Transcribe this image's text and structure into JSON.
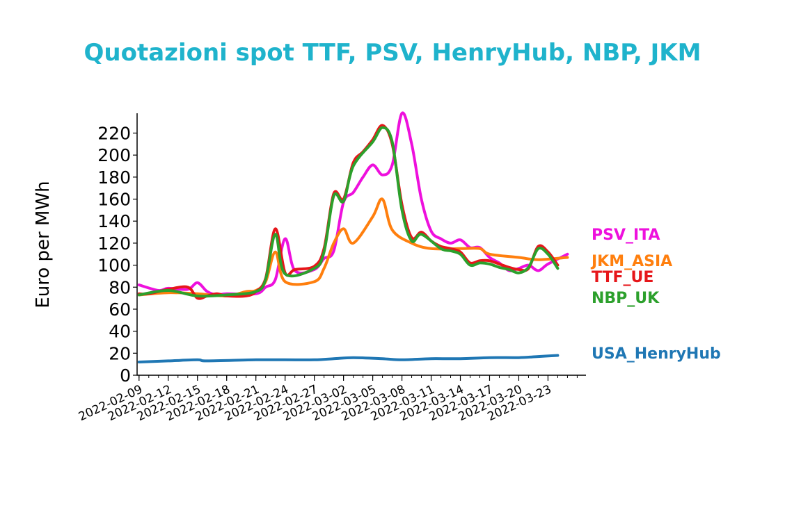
{
  "chart_data": {
    "type": "line",
    "title": "Quotazioni spot TTF, PSV, HenryHub, NBP, JKM",
    "xlabel": "",
    "ylabel": "Euro per MWh",
    "ylim": [
      0,
      238
    ],
    "yticks": [
      0,
      20,
      40,
      60,
      80,
      100,
      120,
      140,
      160,
      180,
      200,
      220
    ],
    "xlim": [
      "2022-02-09",
      "2022-03-26"
    ],
    "xticks": [
      "2022-02-09",
      "2022-02-12",
      "2022-02-15",
      "2022-02-18",
      "2022-02-21",
      "2022-02-24",
      "2022-02-27",
      "2022-03-02",
      "2022-03-05",
      "2022-03-08",
      "2022-03-11",
      "2022-03-14",
      "2022-03-17",
      "2022-03-20",
      "2022-03-23"
    ],
    "legend_placement": "right, labels at line ends",
    "grid": false,
    "series": [
      {
        "name": "PSV_ITA",
        "color": "#ee10dd",
        "points": [
          [
            "2022-02-09",
            82
          ],
          [
            "2022-02-11",
            77
          ],
          [
            "2022-02-12",
            79
          ],
          [
            "2022-02-14",
            78
          ],
          [
            "2022-02-15",
            84
          ],
          [
            "2022-02-16",
            76
          ],
          [
            "2022-02-17",
            73
          ],
          [
            "2022-02-18",
            74
          ],
          [
            "2022-02-21",
            74
          ],
          [
            "2022-02-22",
            80
          ],
          [
            "2022-02-23",
            87
          ],
          [
            "2022-02-24",
            124
          ],
          [
            "2022-02-25",
            95
          ],
          [
            "2022-02-27",
            96
          ],
          [
            "2022-02-28",
            106
          ],
          [
            "2022-03-01",
            113
          ],
          [
            "2022-03-02",
            157
          ],
          [
            "2022-03-03",
            166
          ],
          [
            "2022-03-04",
            180
          ],
          [
            "2022-03-05",
            191
          ],
          [
            "2022-03-06",
            182
          ],
          [
            "2022-03-07",
            191
          ],
          [
            "2022-03-08",
            238
          ],
          [
            "2022-03-09",
            210
          ],
          [
            "2022-03-10",
            160
          ],
          [
            "2022-03-11",
            131
          ],
          [
            "2022-03-12",
            124
          ],
          [
            "2022-03-13",
            120
          ],
          [
            "2022-03-14",
            123
          ],
          [
            "2022-03-15",
            116
          ],
          [
            "2022-03-16",
            116
          ],
          [
            "2022-03-17",
            107
          ],
          [
            "2022-03-18",
            102
          ],
          [
            "2022-03-19",
            95
          ],
          [
            "2022-03-20",
            97
          ],
          [
            "2022-03-21",
            100
          ],
          [
            "2022-03-22",
            95
          ],
          [
            "2022-03-23",
            101
          ],
          [
            "2022-03-25",
            110
          ]
        ]
      },
      {
        "name": "JKM_ASIA",
        "color": "#ff7f0e",
        "points": [
          [
            "2022-02-09",
            73
          ],
          [
            "2022-02-12",
            75
          ],
          [
            "2022-02-15",
            74
          ],
          [
            "2022-02-18",
            72
          ],
          [
            "2022-02-20",
            76
          ],
          [
            "2022-02-21",
            77
          ],
          [
            "2022-02-22",
            85
          ],
          [
            "2022-02-23",
            112
          ],
          [
            "2022-02-24",
            85
          ],
          [
            "2022-02-27",
            85
          ],
          [
            "2022-02-28",
            97
          ],
          [
            "2022-03-01",
            120
          ],
          [
            "2022-03-02",
            133
          ],
          [
            "2022-03-03",
            120
          ],
          [
            "2022-03-05",
            144
          ],
          [
            "2022-03-06",
            160
          ],
          [
            "2022-03-07",
            132
          ],
          [
            "2022-03-09",
            120
          ],
          [
            "2022-03-11",
            115
          ],
          [
            "2022-03-14",
            115
          ],
          [
            "2022-03-16",
            115
          ],
          [
            "2022-03-17",
            110
          ],
          [
            "2022-03-20",
            107
          ],
          [
            "2022-03-22",
            105
          ],
          [
            "2022-03-25",
            107
          ]
        ]
      },
      {
        "name": "TTF_UE",
        "color": "#e6161a",
        "points": [
          [
            "2022-02-09",
            74
          ],
          [
            "2022-02-10",
            74
          ],
          [
            "2022-02-12",
            78
          ],
          [
            "2022-02-14",
            80
          ],
          [
            "2022-02-15",
            70
          ],
          [
            "2022-02-16",
            72
          ],
          [
            "2022-02-17",
            74
          ],
          [
            "2022-02-18",
            72
          ],
          [
            "2022-02-20",
            72
          ],
          [
            "2022-02-21",
            76
          ],
          [
            "2022-02-22",
            88
          ],
          [
            "2022-02-23",
            133
          ],
          [
            "2022-02-24",
            93
          ],
          [
            "2022-02-25",
            96
          ],
          [
            "2022-02-27",
            99
          ],
          [
            "2022-02-28",
            115
          ],
          [
            "2022-03-01",
            165
          ],
          [
            "2022-03-02",
            160
          ],
          [
            "2022-03-03",
            193
          ],
          [
            "2022-03-04",
            203
          ],
          [
            "2022-03-05",
            214
          ],
          [
            "2022-03-06",
            227
          ],
          [
            "2022-03-07",
            210
          ],
          [
            "2022-03-08",
            155
          ],
          [
            "2022-03-09",
            125
          ],
          [
            "2022-03-10",
            130
          ],
          [
            "2022-03-11",
            122
          ],
          [
            "2022-03-12",
            117
          ],
          [
            "2022-03-13",
            115
          ],
          [
            "2022-03-14",
            112
          ],
          [
            "2022-03-15",
            102
          ],
          [
            "2022-03-16",
            104
          ],
          [
            "2022-03-17",
            104
          ],
          [
            "2022-03-18",
            101
          ],
          [
            "2022-03-19",
            98
          ],
          [
            "2022-03-20",
            96
          ],
          [
            "2022-03-21",
            97
          ],
          [
            "2022-03-22",
            117
          ],
          [
            "2022-03-23",
            112
          ],
          [
            "2022-03-24",
            100
          ]
        ]
      },
      {
        "name": "NBP_UK",
        "color": "#2ca02c",
        "points": [
          [
            "2022-02-09",
            73
          ],
          [
            "2022-02-12",
            77
          ],
          [
            "2022-02-15",
            72
          ],
          [
            "2022-02-18",
            73
          ],
          [
            "2022-02-21",
            76
          ],
          [
            "2022-02-22",
            87
          ],
          [
            "2022-02-23",
            128
          ],
          [
            "2022-02-24",
            92
          ],
          [
            "2022-02-27",
            97
          ],
          [
            "2022-02-28",
            112
          ],
          [
            "2022-03-01",
            163
          ],
          [
            "2022-03-02",
            158
          ],
          [
            "2022-03-03",
            190
          ],
          [
            "2022-03-05",
            212
          ],
          [
            "2022-03-06",
            225
          ],
          [
            "2022-03-07",
            212
          ],
          [
            "2022-03-08",
            150
          ],
          [
            "2022-03-09",
            122
          ],
          [
            "2022-03-10",
            128
          ],
          [
            "2022-03-12",
            115
          ],
          [
            "2022-03-13",
            113
          ],
          [
            "2022-03-14",
            110
          ],
          [
            "2022-03-15",
            100
          ],
          [
            "2022-03-16",
            102
          ],
          [
            "2022-03-17",
            101
          ],
          [
            "2022-03-18",
            98
          ],
          [
            "2022-03-19",
            96
          ],
          [
            "2022-03-20",
            93
          ],
          [
            "2022-03-21",
            98
          ],
          [
            "2022-03-22",
            115
          ],
          [
            "2022-03-23",
            110
          ],
          [
            "2022-03-24",
            97
          ]
        ]
      },
      {
        "name": "USA_HenryHub",
        "color": "#1f77b4",
        "points": [
          [
            "2022-02-09",
            12
          ],
          [
            "2022-02-12",
            13
          ],
          [
            "2022-02-15",
            14
          ],
          [
            "2022-02-16",
            13
          ],
          [
            "2022-02-21",
            14
          ],
          [
            "2022-02-24",
            14
          ],
          [
            "2022-02-27",
            14
          ],
          [
            "2022-03-01",
            15
          ],
          [
            "2022-03-03",
            16
          ],
          [
            "2022-03-06",
            15
          ],
          [
            "2022-03-08",
            14
          ],
          [
            "2022-03-11",
            15
          ],
          [
            "2022-03-14",
            15
          ],
          [
            "2022-03-17",
            16
          ],
          [
            "2022-03-20",
            16
          ],
          [
            "2022-03-22",
            17
          ],
          [
            "2022-03-24",
            18
          ]
        ]
      }
    ],
    "end_labels_order": [
      "PSV_ITA",
      "JKM_ASIA",
      "TTF_UE",
      "NBP_UK",
      "USA_HenryHub"
    ]
  }
}
